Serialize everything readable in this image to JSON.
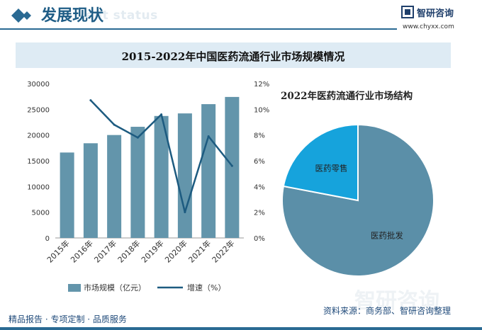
{
  "header": {
    "section_title": "发展现状",
    "section_subtitle_en": "ent status",
    "brand_name": "智研咨询",
    "brand_url": "www.chyxx.com"
  },
  "watermark": "智研咨询",
  "footer": {
    "left": "精品报告 · 专项定制 · 品质服务",
    "source": "资料来源：商务部、智研咨询整理"
  },
  "colors": {
    "bar": "#6395ab",
    "line": "#1d5b80",
    "pie_wholesale": "#5b8fa8",
    "pie_retail": "#16a3dc",
    "accent": "#2a6a93"
  },
  "chart_data": [
    {
      "type": "bar",
      "title": "2015-2022年中国医药流通行业市场规模情况",
      "categories": [
        "2015年",
        "2016年",
        "2017年",
        "2018年",
        "2019年",
        "2020年",
        "2021年",
        "2022年"
      ],
      "series": [
        {
          "name": "市场规模（亿元）",
          "type": "bar",
          "axis": "left",
          "values": [
            16600,
            18400,
            20000,
            21600,
            23700,
            24200,
            26000,
            27400
          ]
        },
        {
          "name": "增速（%）",
          "type": "line",
          "axis": "right",
          "values": [
            null,
            10.7,
            8.8,
            7.8,
            9.6,
            2.0,
            7.9,
            5.6
          ]
        }
      ],
      "y_left": {
        "min": 0,
        "max": 30000,
        "ticks": [
          "0",
          "5000",
          "10000",
          "15000",
          "20000",
          "25000",
          "30000"
        ]
      },
      "y_right": {
        "min": 0,
        "max": 12,
        "ticks": [
          "0%",
          "2%",
          "4%",
          "6%",
          "8%",
          "10%",
          "12%"
        ]
      },
      "grid": false,
      "legend": "bottom"
    },
    {
      "type": "pie",
      "title": "2022年医药流通行业市场结构",
      "slices": [
        {
          "label": "医药批发",
          "value": 78
        },
        {
          "label": "医药零售",
          "value": 22
        }
      ]
    }
  ]
}
